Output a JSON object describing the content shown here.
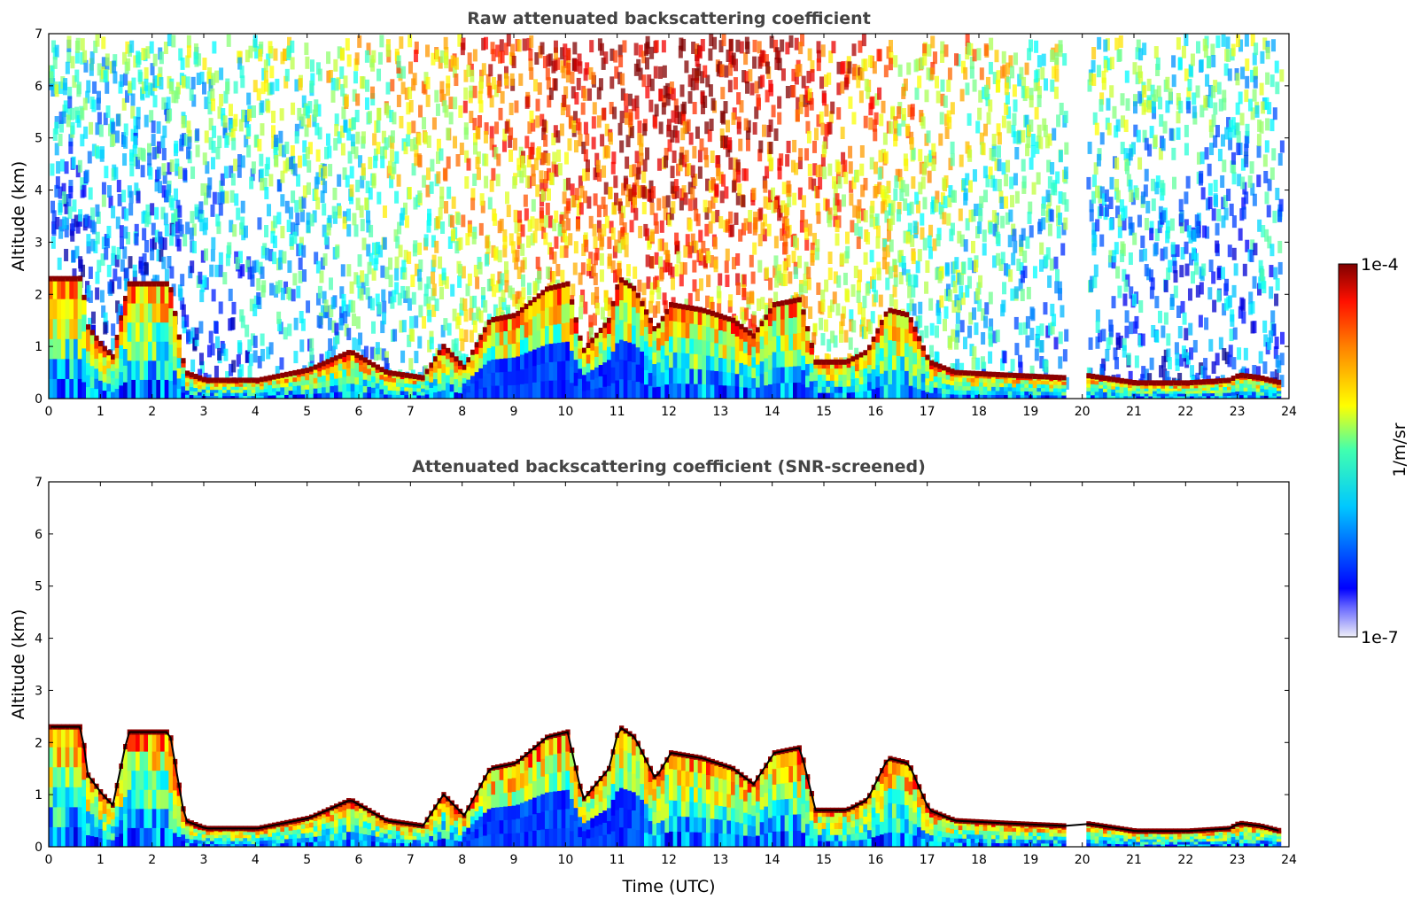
{
  "chart_data": [
    {
      "type": "heatmap",
      "title": "Raw attenuated backscattering coefficient",
      "xlabel": "",
      "ylabel": "Altitude (km)",
      "xlim": [
        0,
        24
      ],
      "ylim": [
        0,
        7
      ],
      "x_ticks": [
        "0",
        "1",
        "2",
        "3",
        "4",
        "5",
        "6",
        "7",
        "8",
        "9",
        "10",
        "11",
        "12",
        "13",
        "14",
        "15",
        "16",
        "17",
        "18",
        "19",
        "20",
        "21",
        "22",
        "23",
        "24"
      ],
      "y_ticks": [
        "0",
        "1",
        "2",
        "3",
        "4",
        "5",
        "6",
        "7"
      ],
      "screened": false,
      "data_gaps_utc": [
        [
          19.65,
          20.0
        ],
        [
          23.8,
          24.0
        ]
      ],
      "layer_top_km": [
        [
          0.0,
          2.3
        ],
        [
          0.6,
          2.3
        ],
        [
          0.7,
          1.4
        ],
        [
          1.0,
          1.0
        ],
        [
          1.2,
          0.8
        ],
        [
          1.5,
          2.2
        ],
        [
          2.3,
          2.2
        ],
        [
          2.6,
          0.5
        ],
        [
          3.0,
          0.35
        ],
        [
          4.0,
          0.35
        ],
        [
          5.0,
          0.55
        ],
        [
          5.8,
          0.9
        ],
        [
          6.5,
          0.5
        ],
        [
          7.2,
          0.4
        ],
        [
          7.6,
          1.0
        ],
        [
          8.0,
          0.6
        ],
        [
          8.5,
          1.5
        ],
        [
          9.0,
          1.6
        ],
        [
          9.6,
          2.1
        ],
        [
          10.0,
          2.2
        ],
        [
          10.3,
          0.9
        ],
        [
          10.8,
          1.5
        ],
        [
          11.0,
          2.3
        ],
        [
          11.3,
          2.1
        ],
        [
          11.7,
          1.3
        ],
        [
          12.0,
          1.8
        ],
        [
          12.6,
          1.7
        ],
        [
          13.2,
          1.5
        ],
        [
          13.6,
          1.2
        ],
        [
          14.0,
          1.8
        ],
        [
          14.5,
          1.9
        ],
        [
          14.8,
          0.7
        ],
        [
          15.4,
          0.7
        ],
        [
          15.8,
          0.9
        ],
        [
          16.2,
          1.7
        ],
        [
          16.6,
          1.6
        ],
        [
          17.0,
          0.7
        ],
        [
          17.5,
          0.5
        ],
        [
          18.5,
          0.45
        ],
        [
          19.6,
          0.4
        ],
        [
          20.0,
          0.45
        ],
        [
          21.0,
          0.3
        ],
        [
          22.0,
          0.3
        ],
        [
          22.8,
          0.35
        ],
        [
          23.0,
          0.45
        ],
        [
          23.4,
          0.4
        ],
        [
          23.8,
          0.3
        ]
      ]
    },
    {
      "type": "heatmap",
      "title": "Attenuated backscattering coefficient (SNR-screened)",
      "xlabel": "Time (UTC)",
      "ylabel": "Altitude (km)",
      "xlim": [
        0,
        24
      ],
      "ylim": [
        0,
        7
      ],
      "x_ticks": [
        "0",
        "1",
        "2",
        "3",
        "4",
        "5",
        "6",
        "7",
        "8",
        "9",
        "10",
        "11",
        "12",
        "13",
        "14",
        "15",
        "16",
        "17",
        "18",
        "19",
        "20",
        "21",
        "22",
        "23",
        "24"
      ],
      "y_ticks": [
        "0",
        "1",
        "2",
        "3",
        "4",
        "5",
        "6",
        "7"
      ],
      "screened": true,
      "data_gaps_utc": [
        [
          19.65,
          20.0
        ],
        [
          23.8,
          24.0
        ]
      ],
      "layer_top_km": [
        [
          0.0,
          2.3
        ],
        [
          0.6,
          2.3
        ],
        [
          0.7,
          1.4
        ],
        [
          1.0,
          1.0
        ],
        [
          1.2,
          0.8
        ],
        [
          1.5,
          2.2
        ],
        [
          2.3,
          2.2
        ],
        [
          2.6,
          0.5
        ],
        [
          3.0,
          0.35
        ],
        [
          4.0,
          0.35
        ],
        [
          5.0,
          0.55
        ],
        [
          5.8,
          0.9
        ],
        [
          6.5,
          0.5
        ],
        [
          7.2,
          0.4
        ],
        [
          7.6,
          1.0
        ],
        [
          8.0,
          0.6
        ],
        [
          8.5,
          1.5
        ],
        [
          9.0,
          1.6
        ],
        [
          9.6,
          2.1
        ],
        [
          10.0,
          2.2
        ],
        [
          10.3,
          0.9
        ],
        [
          10.8,
          1.5
        ],
        [
          11.0,
          2.3
        ],
        [
          11.3,
          2.1
        ],
        [
          11.7,
          1.3
        ],
        [
          12.0,
          1.8
        ],
        [
          12.6,
          1.7
        ],
        [
          13.2,
          1.5
        ],
        [
          13.6,
          1.2
        ],
        [
          14.0,
          1.8
        ],
        [
          14.5,
          1.9
        ],
        [
          14.8,
          0.7
        ],
        [
          15.4,
          0.7
        ],
        [
          15.8,
          0.9
        ],
        [
          16.2,
          1.7
        ],
        [
          16.6,
          1.6
        ],
        [
          17.0,
          0.7
        ],
        [
          17.5,
          0.5
        ],
        [
          18.5,
          0.45
        ],
        [
          19.6,
          0.4
        ],
        [
          20.0,
          0.45
        ],
        [
          21.0,
          0.3
        ],
        [
          22.0,
          0.3
        ],
        [
          22.8,
          0.35
        ],
        [
          23.0,
          0.45
        ],
        [
          23.4,
          0.4
        ],
        [
          23.8,
          0.3
        ]
      ]
    }
  ],
  "colorbar": {
    "label": "1/m/sr",
    "max_label": "1e-4",
    "min_label": "1e-7",
    "scale": "log",
    "colormap": "jet",
    "colors": [
      "#eeeef8",
      "#0000ff",
      "#00ffff",
      "#ffff00",
      "#ff7f00",
      "#ff0000",
      "#800000"
    ]
  }
}
